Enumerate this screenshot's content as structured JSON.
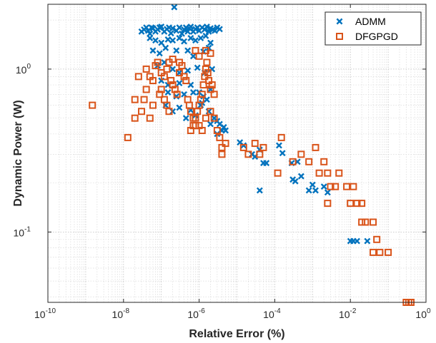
{
  "chart_data": {
    "type": "scatter",
    "x_scale": "log",
    "y_scale": "log",
    "xlabel": "Relative Error (%)",
    "ylabel": "Dynamic Power (W)",
    "xlim": [
      1e-10,
      1
    ],
    "ylim": [
      0.037,
      2.5
    ],
    "x_ticks": [
      {
        "value": 1e-10,
        "base": "10",
        "exp": "-10"
      },
      {
        "value": 1e-08,
        "base": "10",
        "exp": "-8"
      },
      {
        "value": 1e-06,
        "base": "10",
        "exp": "-6"
      },
      {
        "value": 0.0001,
        "base": "10",
        "exp": "-4"
      },
      {
        "value": 0.01,
        "base": "10",
        "exp": "-2"
      },
      {
        "value": 1,
        "base": "10",
        "exp": "0"
      }
    ],
    "y_ticks": [
      {
        "value": 1,
        "base": "10",
        "exp": "0"
      },
      {
        "value": 0.1,
        "base": "10",
        "exp": "-1"
      }
    ],
    "grid": true,
    "minor_grid": true,
    "legend_position": "top-right",
    "series": [
      {
        "name": "ADMM",
        "marker": "x",
        "color": "#0072BD",
        "points": [
          [
            3e-08,
            1.7
          ],
          [
            3.5e-08,
            1.75
          ],
          [
            4e-08,
            1.8
          ],
          [
            4.5e-08,
            1.72
          ],
          [
            5e-08,
            1.65
          ],
          [
            5.5e-08,
            1.8
          ],
          [
            6e-08,
            1.78
          ],
          [
            7e-08,
            1.7
          ],
          [
            8e-08,
            1.75
          ],
          [
            9e-08,
            1.8
          ],
          [
            1e-07,
            1.82
          ],
          [
            1.2e-07,
            1.7
          ],
          [
            1.4e-07,
            1.76
          ],
          [
            1.6e-07,
            1.8
          ],
          [
            1.8e-07,
            1.66
          ],
          [
            2e-07,
            1.78
          ],
          [
            2.2e-07,
            2.4
          ],
          [
            2.5e-07,
            1.72
          ],
          [
            3e-07,
            1.8
          ],
          [
            3.5e-07,
            1.65
          ],
          [
            4e-07,
            1.75
          ],
          [
            4.5e-07,
            1.8
          ],
          [
            5e-07,
            1.7
          ],
          [
            5.5e-07,
            1.78
          ],
          [
            6e-07,
            1.82
          ],
          [
            7e-07,
            1.7
          ],
          [
            8e-07,
            1.76
          ],
          [
            9e-07,
            1.8
          ],
          [
            1e-06,
            1.72
          ],
          [
            1.2e-06,
            1.8
          ],
          [
            1.4e-06,
            1.75
          ],
          [
            1.6e-06,
            1.82
          ],
          [
            1.8e-06,
            1.7
          ],
          [
            2e-06,
            1.78
          ],
          [
            2.3e-06,
            1.75
          ],
          [
            2.6e-06,
            1.72
          ],
          [
            3e-06,
            1.8
          ],
          [
            3.5e-06,
            1.76
          ],
          [
            5e-08,
            1.55
          ],
          [
            7e-08,
            1.5
          ],
          [
            1e-07,
            1.45
          ],
          [
            1.5e-07,
            1.52
          ],
          [
            2e-07,
            1.5
          ],
          [
            3e-07,
            1.55
          ],
          [
            4e-07,
            1.48
          ],
          [
            6e-07,
            1.55
          ],
          [
            8e-07,
            1.5
          ],
          [
            1.1e-06,
            1.55
          ],
          [
            1.5e-06,
            1.6
          ],
          [
            2e-06,
            1.45
          ],
          [
            6e-08,
            1.3
          ],
          [
            9e-08,
            1.25
          ],
          [
            1.3e-07,
            1.35
          ],
          [
            2.5e-07,
            1.3
          ],
          [
            5e-07,
            1.3
          ],
          [
            7e-07,
            1.2
          ],
          [
            1.3e-06,
            1.28
          ],
          [
            1.8e-06,
            1.35
          ],
          [
            8e-08,
            1.05
          ],
          [
            1.2e-07,
            1.1
          ],
          [
            2e-07,
            1.0
          ],
          [
            3e-07,
            0.95
          ],
          [
            5e-07,
            0.98
          ],
          [
            9e-07,
            1.02
          ],
          [
            1.4e-06,
            0.95
          ],
          [
            2.2e-06,
            1.0
          ],
          [
            1e-07,
            0.85
          ],
          [
            1.5e-07,
            0.8
          ],
          [
            3e-07,
            0.82
          ],
          [
            6e-07,
            0.8
          ],
          [
            1e-06,
            0.72
          ],
          [
            1.3e-06,
            0.68
          ],
          [
            2e-06,
            0.75
          ],
          [
            1.5e-07,
            0.72
          ],
          [
            2.5e-07,
            0.68
          ],
          [
            4e-07,
            0.7
          ],
          [
            7e-07,
            0.72
          ],
          [
            1.2e-06,
            0.62
          ],
          [
            1.6e-06,
            0.65
          ],
          [
            1.3e-07,
            0.6
          ],
          [
            2e-07,
            0.55
          ],
          [
            3e-07,
            0.58
          ],
          [
            4.5e-07,
            0.5
          ],
          [
            6e-07,
            0.56
          ],
          [
            8e-07,
            0.52
          ],
          [
            1.1e-06,
            0.6
          ],
          [
            1.8e-06,
            0.55
          ],
          [
            2.5e-06,
            0.5
          ],
          [
            3e-06,
            0.48
          ],
          [
            2e-06,
            0.46
          ],
          [
            3.5e-06,
            0.46
          ],
          [
            4.5e-06,
            0.44
          ],
          [
            3e-06,
            0.4
          ],
          [
            4e-06,
            0.42
          ],
          [
            5e-06,
            0.42
          ],
          [
            1.2e-05,
            0.355
          ],
          [
            1.5e-05,
            0.34
          ],
          [
            2.5e-05,
            0.3
          ],
          [
            4e-05,
            0.32
          ],
          [
            3e-05,
            0.29
          ],
          [
            5e-05,
            0.265
          ],
          [
            6e-05,
            0.265
          ],
          [
            0.00013,
            0.34
          ],
          [
            0.00016,
            0.305
          ],
          [
            0.00028,
            0.265
          ],
          [
            0.0004,
            0.27
          ],
          [
            0.0005,
            0.22
          ],
          [
            0.00035,
            0.205
          ],
          [
            0.0003,
            0.21
          ],
          [
            4e-05,
            0.18
          ],
          [
            0.0008,
            0.18
          ],
          [
            0.001,
            0.195
          ],
          [
            0.0012,
            0.18
          ],
          [
            0.002,
            0.19
          ],
          [
            0.0025,
            0.175
          ],
          [
            0.01,
            0.088
          ],
          [
            0.012,
            0.088
          ],
          [
            0.015,
            0.088
          ],
          [
            0.028,
            0.088
          ]
        ]
      },
      {
        "name": "DFGPGD",
        "marker": "square",
        "color": "#D95319",
        "points": [
          [
            1.5e-09,
            0.6
          ],
          [
            1.3e-08,
            0.38
          ],
          [
            2e-08,
            0.65
          ],
          [
            2e-08,
            0.5
          ],
          [
            2.5e-08,
            0.9
          ],
          [
            3e-08,
            0.55
          ],
          [
            3.5e-08,
            0.65
          ],
          [
            4e-08,
            0.75
          ],
          [
            5e-08,
            0.5
          ],
          [
            6e-08,
            0.6
          ],
          [
            4e-08,
            1.0
          ],
          [
            5e-08,
            0.9
          ],
          [
            6e-08,
            0.85
          ],
          [
            7e-08,
            1.05
          ],
          [
            8e-08,
            1.1
          ],
          [
            9e-08,
            0.7
          ],
          [
            1e-07,
            0.75
          ],
          [
            1.2e-07,
            0.65
          ],
          [
            1.4e-07,
            0.6
          ],
          [
            1.6e-07,
            0.55
          ],
          [
            1e-07,
            0.95
          ],
          [
            1.2e-07,
            0.9
          ],
          [
            1.4e-07,
            1.0
          ],
          [
            1.6e-07,
            1.1
          ],
          [
            1.8e-07,
            0.85
          ],
          [
            2e-07,
            0.8
          ],
          [
            2.3e-07,
            0.75
          ],
          [
            2.6e-07,
            0.7
          ],
          [
            3e-07,
            0.95
          ],
          [
            3.5e-07,
            1.05
          ],
          [
            4e-07,
            0.9
          ],
          [
            4.5e-07,
            0.85
          ],
          [
            5e-07,
            0.65
          ],
          [
            5.5e-07,
            0.6
          ],
          [
            6e-07,
            0.55
          ],
          [
            7e-07,
            0.5
          ],
          [
            8e-07,
            0.45
          ],
          [
            9e-07,
            0.55
          ],
          [
            1e-06,
            0.6
          ],
          [
            1.1e-06,
            0.65
          ],
          [
            1.2e-06,
            0.7
          ],
          [
            1.3e-06,
            0.8
          ],
          [
            1.4e-06,
            0.9
          ],
          [
            1.5e-06,
            1.0
          ],
          [
            1.6e-06,
            1.1
          ],
          [
            1.7e-06,
            0.95
          ],
          [
            1.8e-06,
            0.85
          ],
          [
            2e-06,
            0.75
          ],
          [
            2.2e-06,
            0.8
          ],
          [
            2.5e-06,
            0.7
          ],
          [
            6e-07,
            0.42
          ],
          [
            7e-07,
            0.45
          ],
          [
            8e-07,
            0.5
          ],
          [
            1e-06,
            0.45
          ],
          [
            1.2e-06,
            0.42
          ],
          [
            1.5e-06,
            0.5
          ],
          [
            2e-06,
            0.55
          ],
          [
            2.5e-06,
            0.5
          ],
          [
            3e-06,
            0.42
          ],
          [
            3.5e-06,
            0.38
          ],
          [
            1.5e-06,
            1.3
          ],
          [
            2e-06,
            1.25
          ],
          [
            1e-06,
            1.2
          ],
          [
            8e-07,
            1.3
          ],
          [
            3e-07,
            1.1
          ],
          [
            2e-07,
            1.15
          ],
          [
            4e-06,
            0.33
          ],
          [
            5e-06,
            0.35
          ],
          [
            4e-06,
            0.3
          ],
          [
            1.5e-05,
            0.33
          ],
          [
            2e-05,
            0.3
          ],
          [
            3e-05,
            0.35
          ],
          [
            4e-05,
            0.3
          ],
          [
            5e-05,
            0.33
          ],
          [
            0.00012,
            0.23
          ],
          [
            0.00015,
            0.38
          ],
          [
            0.0003,
            0.27
          ],
          [
            0.0005,
            0.3
          ],
          [
            0.0008,
            0.27
          ],
          [
            0.0012,
            0.33
          ],
          [
            0.0015,
            0.23
          ],
          [
            0.002,
            0.27
          ],
          [
            0.0025,
            0.23
          ],
          [
            0.003,
            0.19
          ],
          [
            0.004,
            0.19
          ],
          [
            0.0025,
            0.15
          ],
          [
            0.005,
            0.23
          ],
          [
            0.008,
            0.19
          ],
          [
            0.012,
            0.19
          ],
          [
            0.01,
            0.15
          ],
          [
            0.015,
            0.15
          ],
          [
            0.02,
            0.15
          ],
          [
            0.02,
            0.115
          ],
          [
            0.025,
            0.115
          ],
          [
            0.04,
            0.115
          ],
          [
            0.05,
            0.09
          ],
          [
            0.04,
            0.075
          ],
          [
            0.06,
            0.075
          ],
          [
            0.1,
            0.075
          ],
          [
            0.3,
            0.037
          ],
          [
            0.35,
            0.037
          ],
          [
            0.4,
            0.037
          ]
        ]
      }
    ]
  }
}
